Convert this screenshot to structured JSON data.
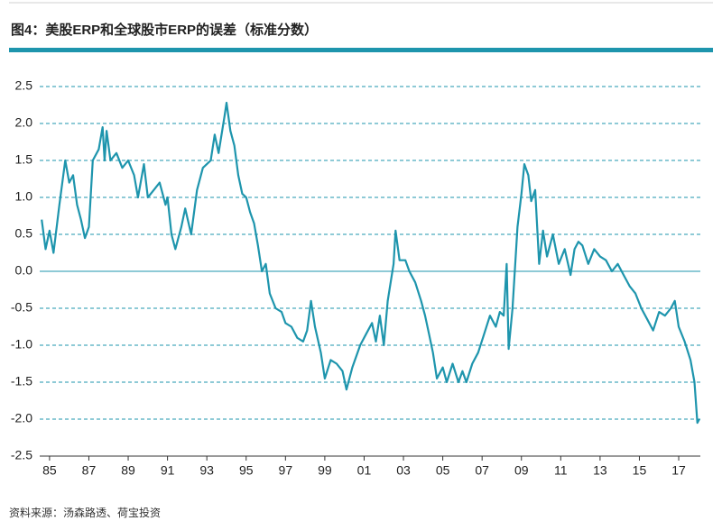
{
  "chart_data": {
    "type": "line",
    "title": "图4：美股ERP和全球股市ERP的误差（标准分数）",
    "source": "资料来源：汤森路透、荷宝投资",
    "grid": true,
    "color": "#1e95ad",
    "xlim": [
      1984.5,
      2018.1
    ],
    "xticks": [
      {
        "value": 1985,
        "label": "85"
      },
      {
        "value": 1987,
        "label": "87"
      },
      {
        "value": 1989,
        "label": "89"
      },
      {
        "value": 1991,
        "label": "91"
      },
      {
        "value": 1993,
        "label": "93"
      },
      {
        "value": 1995,
        "label": "95"
      },
      {
        "value": 1997,
        "label": "97"
      },
      {
        "value": 1999,
        "label": "99"
      },
      {
        "value": 2001,
        "label": "01"
      },
      {
        "value": 2003,
        "label": "03"
      },
      {
        "value": 2005,
        "label": "05"
      },
      {
        "value": 2007,
        "label": "07"
      },
      {
        "value": 2009,
        "label": "09"
      },
      {
        "value": 2011,
        "label": "11"
      },
      {
        "value": 2013,
        "label": "13"
      },
      {
        "value": 2015,
        "label": "15"
      },
      {
        "value": 2017,
        "label": "17"
      }
    ],
    "ylim": [
      -2.5,
      2.5
    ],
    "yticks": [
      2.5,
      {
        "value": 2,
        "label": "2.0"
      },
      1.5,
      {
        "value": 1,
        "label": "1.0"
      },
      0.5,
      {
        "value": 0,
        "label": "0.0"
      },
      -0.5,
      {
        "value": -1,
        "label": "-1.0"
      },
      -1.5,
      {
        "value": -2,
        "label": "-2.0"
      },
      -2.5
    ],
    "x": [
      1984.6,
      1984.8,
      1985.0,
      1985.2,
      1985.5,
      1985.8,
      1986.0,
      1986.2,
      1986.4,
      1986.6,
      1986.8,
      1987.0,
      1987.2,
      1987.5,
      1987.7,
      1987.8,
      1987.9,
      1988.1,
      1988.4,
      1988.7,
      1989.0,
      1989.3,
      1989.5,
      1989.8,
      1990.0,
      1990.3,
      1990.6,
      1990.9,
      1991.0,
      1991.2,
      1991.4,
      1991.7,
      1991.9,
      1992.2,
      1992.5,
      1992.8,
      1993.0,
      1993.2,
      1993.4,
      1993.6,
      1993.9,
      1994.0,
      1994.2,
      1994.4,
      1994.6,
      1994.8,
      1995.0,
      1995.2,
      1995.4,
      1995.6,
      1995.8,
      1996.0,
      1996.2,
      1996.5,
      1996.8,
      1997.0,
      1997.3,
      1997.6,
      1997.9,
      1998.1,
      1998.3,
      1998.5,
      1998.8,
      1999.0,
      1999.3,
      1999.6,
      1999.9,
      2000.1,
      2000.4,
      2000.8,
      2001.1,
      2001.4,
      2001.6,
      2001.8,
      2002.0,
      2002.2,
      2002.5,
      2002.6,
      2002.8,
      2003.1,
      2003.3,
      2003.6,
      2003.9,
      2004.1,
      2004.3,
      2004.5,
      2004.7,
      2005.0,
      2005.2,
      2005.5,
      2005.8,
      2006.0,
      2006.2,
      2006.5,
      2006.8,
      2007.1,
      2007.4,
      2007.7,
      2007.9,
      2008.1,
      2008.25,
      2008.35,
      2008.55,
      2008.8,
      2009.0,
      2009.15,
      2009.35,
      2009.5,
      2009.7,
      2009.9,
      2010.1,
      2010.3,
      2010.6,
      2010.9,
      2011.2,
      2011.5,
      2011.7,
      2011.9,
      2012.1,
      2012.4,
      2012.7,
      2013.0,
      2013.3,
      2013.6,
      2013.9,
      2014.2,
      2014.5,
      2014.8,
      2015.1,
      2015.4,
      2015.7,
      2016.0,
      2016.3,
      2016.6,
      2016.8,
      2017.0,
      2017.3,
      2017.6,
      2017.8,
      2017.95,
      2018.05
    ],
    "values": [
      0.7,
      0.3,
      0.55,
      0.25,
      0.9,
      1.5,
      1.2,
      1.3,
      0.9,
      0.7,
      0.45,
      0.6,
      1.5,
      1.65,
      1.95,
      1.5,
      1.9,
      1.5,
      1.6,
      1.4,
      1.5,
      1.3,
      1.0,
      1.45,
      1.0,
      1.1,
      1.2,
      0.9,
      1.0,
      0.5,
      0.3,
      0.6,
      0.85,
      0.5,
      1.1,
      1.4,
      1.45,
      1.5,
      1.85,
      1.6,
      2.1,
      2.28,
      1.9,
      1.7,
      1.3,
      1.05,
      1.0,
      0.8,
      0.65,
      0.35,
      0.0,
      0.1,
      -0.3,
      -0.5,
      -0.55,
      -0.7,
      -0.75,
      -0.9,
      -0.95,
      -0.8,
      -0.4,
      -0.75,
      -1.1,
      -1.45,
      -1.2,
      -1.25,
      -1.35,
      -1.6,
      -1.3,
      -1.0,
      -0.85,
      -0.7,
      -0.95,
      -0.6,
      -1.0,
      -0.4,
      0.1,
      0.55,
      0.15,
      0.15,
      0.0,
      -0.15,
      -0.4,
      -0.6,
      -0.85,
      -1.1,
      -1.45,
      -1.3,
      -1.5,
      -1.25,
      -1.5,
      -1.35,
      -1.5,
      -1.25,
      -1.1,
      -0.85,
      -0.6,
      -0.75,
      -0.55,
      -0.6,
      0.1,
      -1.05,
      -0.5,
      0.6,
      1.05,
      1.45,
      1.3,
      0.95,
      1.1,
      0.1,
      0.55,
      0.2,
      0.5,
      0.1,
      0.3,
      -0.05,
      0.3,
      0.4,
      0.35,
      0.1,
      0.3,
      0.2,
      0.15,
      0.0,
      0.1,
      -0.05,
      -0.2,
      -0.3,
      -0.5,
      -0.65,
      -0.8,
      -0.55,
      -0.6,
      -0.5,
      -0.4,
      -0.75,
      -0.95,
      -1.2,
      -1.5,
      -2.05,
      -2.0
    ]
  }
}
